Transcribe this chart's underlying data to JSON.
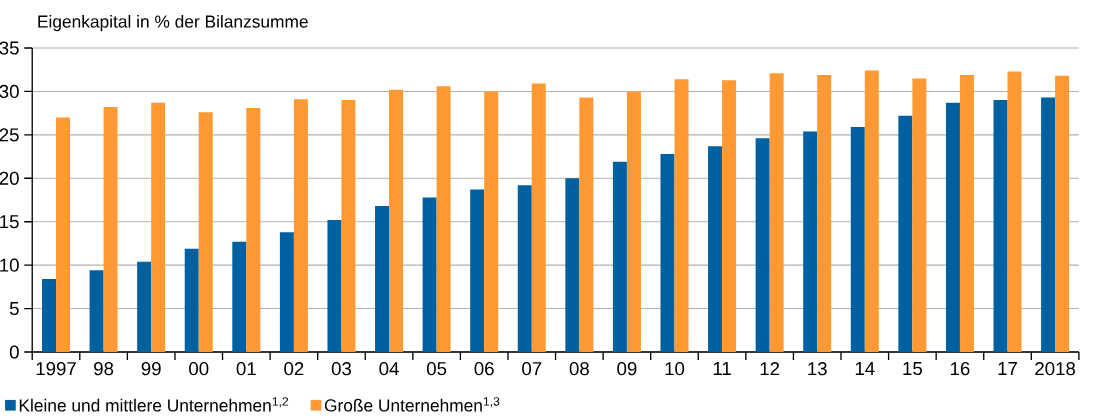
{
  "chart_data": {
    "type": "bar",
    "ylabel": "Eigenkapital in % der Bilanzsumme",
    "categories": [
      "1997",
      "98",
      "99",
      "00",
      "01",
      "02",
      "03",
      "04",
      "05",
      "06",
      "07",
      "08",
      "09",
      "10",
      "11",
      "12",
      "13",
      "14",
      "15",
      "16",
      "17",
      "2018"
    ],
    "series": [
      {
        "name": "Kleine und mittlere Unternehmen$^{1,2}$",
        "color": "#0060a0",
        "values": [
          8.4,
          9.4,
          10.4,
          11.9,
          12.7,
          13.8,
          15.2,
          16.8,
          17.8,
          18.7,
          19.2,
          20.0,
          21.9,
          22.8,
          23.7,
          24.6,
          25.4,
          25.9,
          27.2,
          28.7,
          29.0,
          29.3
        ]
      },
      {
        "name": "Große Unternehmen$^{1,3}$",
        "color": "#ff9933",
        "values": [
          27.0,
          28.2,
          28.7,
          27.6,
          28.1,
          29.1,
          29.0,
          30.2,
          30.6,
          30.0,
          30.9,
          29.3,
          30.0,
          31.4,
          31.3,
          32.1,
          31.9,
          32.4,
          31.5,
          31.9,
          32.3,
          31.8
        ]
      }
    ],
    "ylim": [
      0,
      35
    ],
    "yticks": [
      0,
      5,
      10,
      15,
      20,
      25,
      30,
      35
    ],
    "grid": "y",
    "legend": "bottom"
  }
}
